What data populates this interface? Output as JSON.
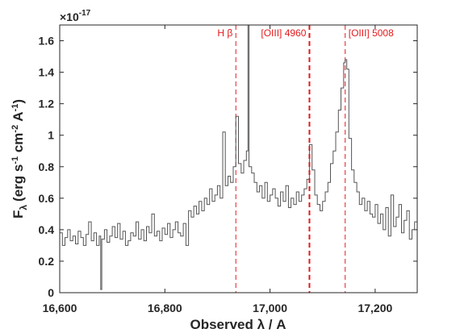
{
  "chart_data": {
    "type": "line",
    "title": "",
    "xlabel": "Observed λ / A",
    "ylabel_main": "F",
    "ylabel_sub": "λ",
    "ylabel_units": "(erg s",
    "ylabel_units_parts": [
      "(erg s",
      "-1",
      " cm",
      "-2",
      " A",
      "-1",
      ")"
    ],
    "y_multiplier_base": "×10",
    "y_multiplier_exp": "-17",
    "xlim": [
      16600,
      17280
    ],
    "ylim": [
      0,
      1.7
    ],
    "x_ticks": [
      16600,
      16800,
      17000,
      17200
    ],
    "x_tick_labels": [
      "16,600",
      "16,800",
      "17,000",
      "17,200"
    ],
    "y_ticks": [
      0,
      0.2,
      0.4,
      0.6,
      0.8,
      1,
      1.2,
      1.4,
      1.6
    ],
    "y_tick_labels": [
      "0",
      "0.2",
      "0.4",
      "0.6",
      "0.8",
      "1",
      "1.2",
      "1.4",
      "1.6"
    ],
    "grid": false,
    "line_color": "#555555",
    "marker_color": "#e41a1c",
    "lines": [
      {
        "label": "H β",
        "x": 16935
      },
      {
        "label": "[OIII] 4960",
        "x": 17075
      },
      {
        "label": "[OIII] 5008",
        "x": 17143
      }
    ],
    "series": [
      {
        "x": [
          16600,
          16605,
          16610,
          16615,
          16620,
          16625,
          16630,
          16635,
          16640,
          16645,
          16650,
          16655,
          16660,
          16665,
          16670,
          16675,
          16678,
          16680,
          16685,
          16690,
          16695,
          16700,
          16705,
          16710,
          16715,
          16720,
          16725,
          16730,
          16735,
          16740,
          16745,
          16750,
          16755,
          16760,
          16765,
          16770,
          16775,
          16780,
          16785,
          16790,
          16795,
          16800,
          16805,
          16810,
          16815,
          16820,
          16825,
          16830,
          16835,
          16840,
          16845,
          16850,
          16855,
          16860,
          16865,
          16870,
          16875,
          16880,
          16885,
          16890,
          16895,
          16900,
          16905,
          16910,
          16915,
          16920,
          16925,
          16930,
          16935,
          16940,
          16945,
          16950,
          16955,
          16958,
          16960,
          16965,
          16970,
          16975,
          16980,
          16985,
          16990,
          16995,
          17000,
          17005,
          17010,
          17015,
          17020,
          17025,
          17030,
          17035,
          17040,
          17045,
          17050,
          17055,
          17060,
          17065,
          17070,
          17075,
          17080,
          17085,
          17090,
          17095,
          17100,
          17105,
          17110,
          17115,
          17120,
          17125,
          17130,
          17135,
          17140,
          17143,
          17146,
          17150,
          17155,
          17160,
          17165,
          17170,
          17175,
          17180,
          17185,
          17190,
          17195,
          17200,
          17205,
          17210,
          17215,
          17220,
          17225,
          17230,
          17235,
          17240,
          17245,
          17250,
          17255,
          17260,
          17265,
          17270,
          17275,
          17280
        ],
        "y": [
          0.38,
          0.3,
          0.35,
          0.4,
          0.33,
          0.36,
          0.31,
          0.39,
          0.35,
          0.3,
          0.37,
          0.45,
          0.33,
          0.38,
          0.3,
          0.36,
          0.02,
          0.34,
          0.4,
          0.32,
          0.36,
          0.42,
          0.35,
          0.44,
          0.34,
          0.39,
          0.3,
          0.33,
          0.38,
          0.36,
          0.45,
          0.34,
          0.4,
          0.33,
          0.42,
          0.38,
          0.5,
          0.36,
          0.39,
          0.33,
          0.41,
          0.37,
          0.44,
          0.35,
          0.4,
          0.45,
          0.38,
          0.36,
          0.44,
          0.3,
          0.52,
          0.48,
          0.55,
          0.5,
          0.58,
          0.52,
          0.6,
          0.56,
          0.66,
          0.58,
          0.62,
          0.68,
          0.6,
          1.02,
          0.68,
          0.74,
          0.7,
          0.8,
          1.12,
          0.82,
          0.76,
          0.84,
          0.9,
          1.72,
          0.8,
          0.76,
          0.7,
          0.64,
          0.68,
          0.6,
          0.7,
          0.58,
          0.62,
          0.66,
          0.6,
          0.55,
          0.64,
          0.58,
          0.68,
          0.54,
          0.6,
          0.56,
          0.64,
          0.58,
          0.62,
          0.66,
          0.72,
          0.94,
          0.78,
          0.62,
          0.56,
          0.52,
          0.58,
          0.64,
          0.7,
          0.82,
          0.9,
          1.02,
          1.16,
          1.3,
          1.46,
          1.48,
          1.42,
          0.98,
          0.78,
          0.7,
          0.64,
          0.56,
          0.6,
          0.52,
          0.58,
          0.5,
          0.48,
          0.56,
          0.44,
          0.5,
          0.4,
          0.54,
          0.36,
          0.62,
          0.42,
          0.48,
          0.56,
          0.38,
          0.46,
          0.52,
          0.34,
          0.4,
          0.45,
          0.4
        ]
      }
    ]
  }
}
